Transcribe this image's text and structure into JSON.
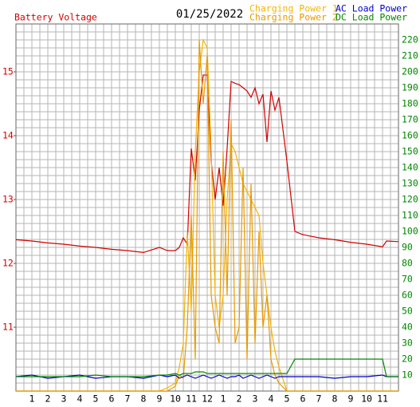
{
  "chart_data": {
    "type": "line",
    "title": "01/25/2022",
    "x": [
      0,
      1,
      2,
      3,
      4,
      5,
      6,
      7,
      8,
      9,
      9.5,
      10,
      10.25,
      10.5,
      10.75,
      11,
      11.25,
      11.5,
      11.75,
      12,
      12.25,
      12.5,
      12.75,
      13,
      13.25,
      13.5,
      13.75,
      14,
      14.25,
      14.5,
      14.75,
      15,
      15.25,
      15.5,
      15.75,
      16,
      16.25,
      16.5,
      17,
      17.5,
      18,
      19,
      20,
      21,
      22,
      23,
      23.25,
      24
    ],
    "xlim": [
      0,
      24
    ],
    "xticks": [
      1,
      2,
      3,
      4,
      5,
      6,
      7,
      8,
      9,
      10,
      11,
      12,
      {
        "value": 13,
        "label": "1"
      },
      {
        "value": 14,
        "label": "2"
      },
      {
        "value": 15,
        "label": "3"
      },
      {
        "value": 16,
        "label": "4"
      },
      {
        "value": 17,
        "label": "5"
      },
      {
        "value": 18,
        "label": "6"
      },
      {
        "value": 19,
        "label": "7"
      },
      {
        "value": 20,
        "label": "8"
      },
      {
        "value": 21,
        "label": "9"
      },
      {
        "value": 22,
        "label": "10"
      },
      {
        "value": 23,
        "label": "11"
      }
    ],
    "ylim": [
      10,
      15.75
    ],
    "yticks": [
      11,
      12,
      13,
      14,
      15
    ],
    "y2lim": [
      0,
      230
    ],
    "y2ticks": [
      10,
      20,
      30,
      40,
      50,
      60,
      70,
      80,
      90,
      100,
      110,
      120,
      130,
      140,
      150,
      160,
      170,
      180,
      190,
      200,
      210,
      220
    ],
    "grid": true,
    "series": [
      {
        "name": "Battery Voltage",
        "color": "#d40000",
        "axis": "y",
        "values": [
          12.37,
          12.35,
          12.32,
          12.3,
          12.27,
          12.25,
          12.22,
          12.2,
          12.17,
          12.25,
          12.2,
          12.2,
          12.25,
          12.4,
          12.3,
          13.8,
          13.3,
          14.4,
          14.95,
          14.95,
          13.6,
          13.0,
          13.5,
          12.9,
          13.8,
          14.85,
          14.82,
          14.8,
          14.75,
          14.7,
          14.6,
          14.75,
          14.5,
          14.65,
          13.9,
          14.7,
          14.4,
          14.6,
          13.6,
          12.5,
          12.45,
          12.4,
          12.37,
          12.33,
          12.3,
          12.26,
          12.35,
          12.34
        ]
      },
      {
        "name": "Charging Power 1",
        "color": "#f5b400",
        "axis": "y2",
        "values": [
          0,
          0,
          0,
          0,
          0,
          0,
          0,
          0,
          0,
          0,
          2,
          5,
          15,
          30,
          100,
          50,
          150,
          200,
          220,
          215,
          150,
          60,
          40,
          60,
          120,
          155,
          150,
          140,
          130,
          125,
          120,
          115,
          110,
          80,
          60,
          40,
          25,
          15,
          0,
          0,
          0,
          0,
          0,
          0,
          0,
          0,
          0,
          0
        ]
      },
      {
        "name": "Charging Power 2",
        "color": "#e89a00",
        "axis": "y2",
        "values": [
          0,
          0,
          0,
          0,
          0,
          0,
          0,
          0,
          0,
          0,
          0,
          3,
          10,
          8,
          40,
          110,
          20,
          220,
          180,
          210,
          60,
          40,
          30,
          150,
          60,
          170,
          30,
          40,
          140,
          20,
          130,
          30,
          100,
          40,
          60,
          20,
          10,
          5,
          0,
          0,
          0,
          0,
          0,
          0,
          0,
          0,
          0,
          0
        ]
      },
      {
        "name": "AC Load Power",
        "color": "#0000cc",
        "axis": "y2",
        "values": [
          9,
          10,
          8,
          9,
          10,
          8,
          9,
          9,
          8,
          10,
          9,
          10,
          8,
          9,
          10,
          9,
          8,
          9,
          10,
          9,
          8,
          9,
          10,
          9,
          8,
          9,
          9,
          10,
          8,
          9,
          10,
          9,
          8,
          9,
          10,
          9,
          8,
          9,
          9,
          9,
          9,
          9,
          8,
          9,
          9,
          10,
          9,
          9
        ]
      },
      {
        "name": "DC Load Power",
        "color": "#008800",
        "axis": "y2",
        "values": [
          9,
          9,
          9,
          9,
          9,
          10,
          9,
          9,
          9,
          10,
          10,
          11,
          10,
          11,
          11,
          11,
          12,
          12,
          12,
          11,
          11,
          11,
          11,
          11,
          11,
          11,
          11,
          11,
          11,
          11,
          11,
          11,
          11,
          11,
          11,
          11,
          11,
          11,
          11,
          20,
          20,
          20,
          20,
          20,
          20,
          20,
          9,
          9
        ]
      }
    ]
  }
}
